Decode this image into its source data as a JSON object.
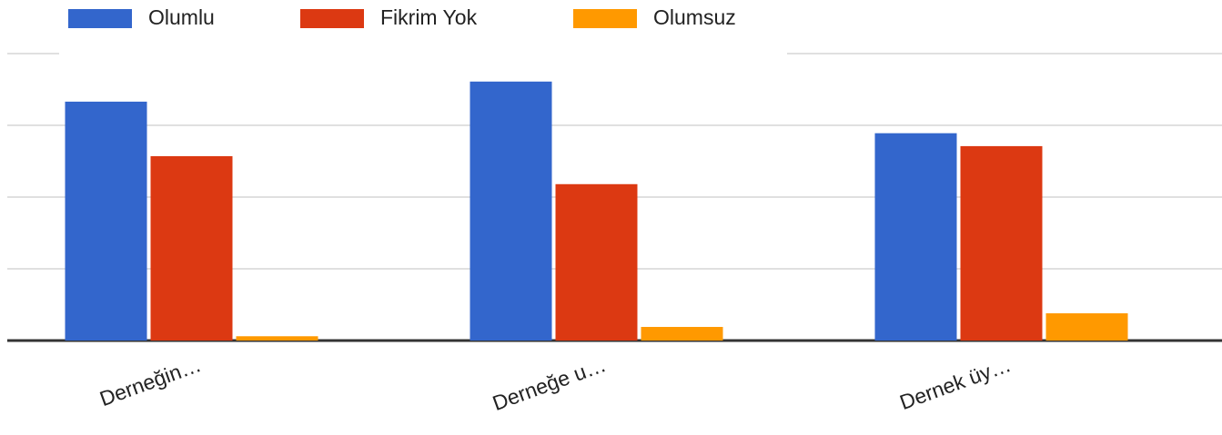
{
  "chart_data": {
    "type": "bar",
    "categories": [
      "Derneğin…",
      "Derneğe u…",
      "Dernek üy…"
    ],
    "series": [
      {
        "name": "Olumlu",
        "color": "#3366cc",
        "values": [
          3.33,
          3.61,
          2.89
        ]
      },
      {
        "name": "Fikrim Yok",
        "color": "#dc3912",
        "values": [
          2.57,
          2.18,
          2.71
        ]
      },
      {
        "name": "Olumsuz",
        "color": "#ff9900",
        "values": [
          0.06,
          0.19,
          0.38
        ]
      }
    ],
    "ylim": [
      0,
      4
    ],
    "yticks": [
      0,
      1,
      2,
      3,
      4
    ],
    "grid": true,
    "legend": "top"
  }
}
